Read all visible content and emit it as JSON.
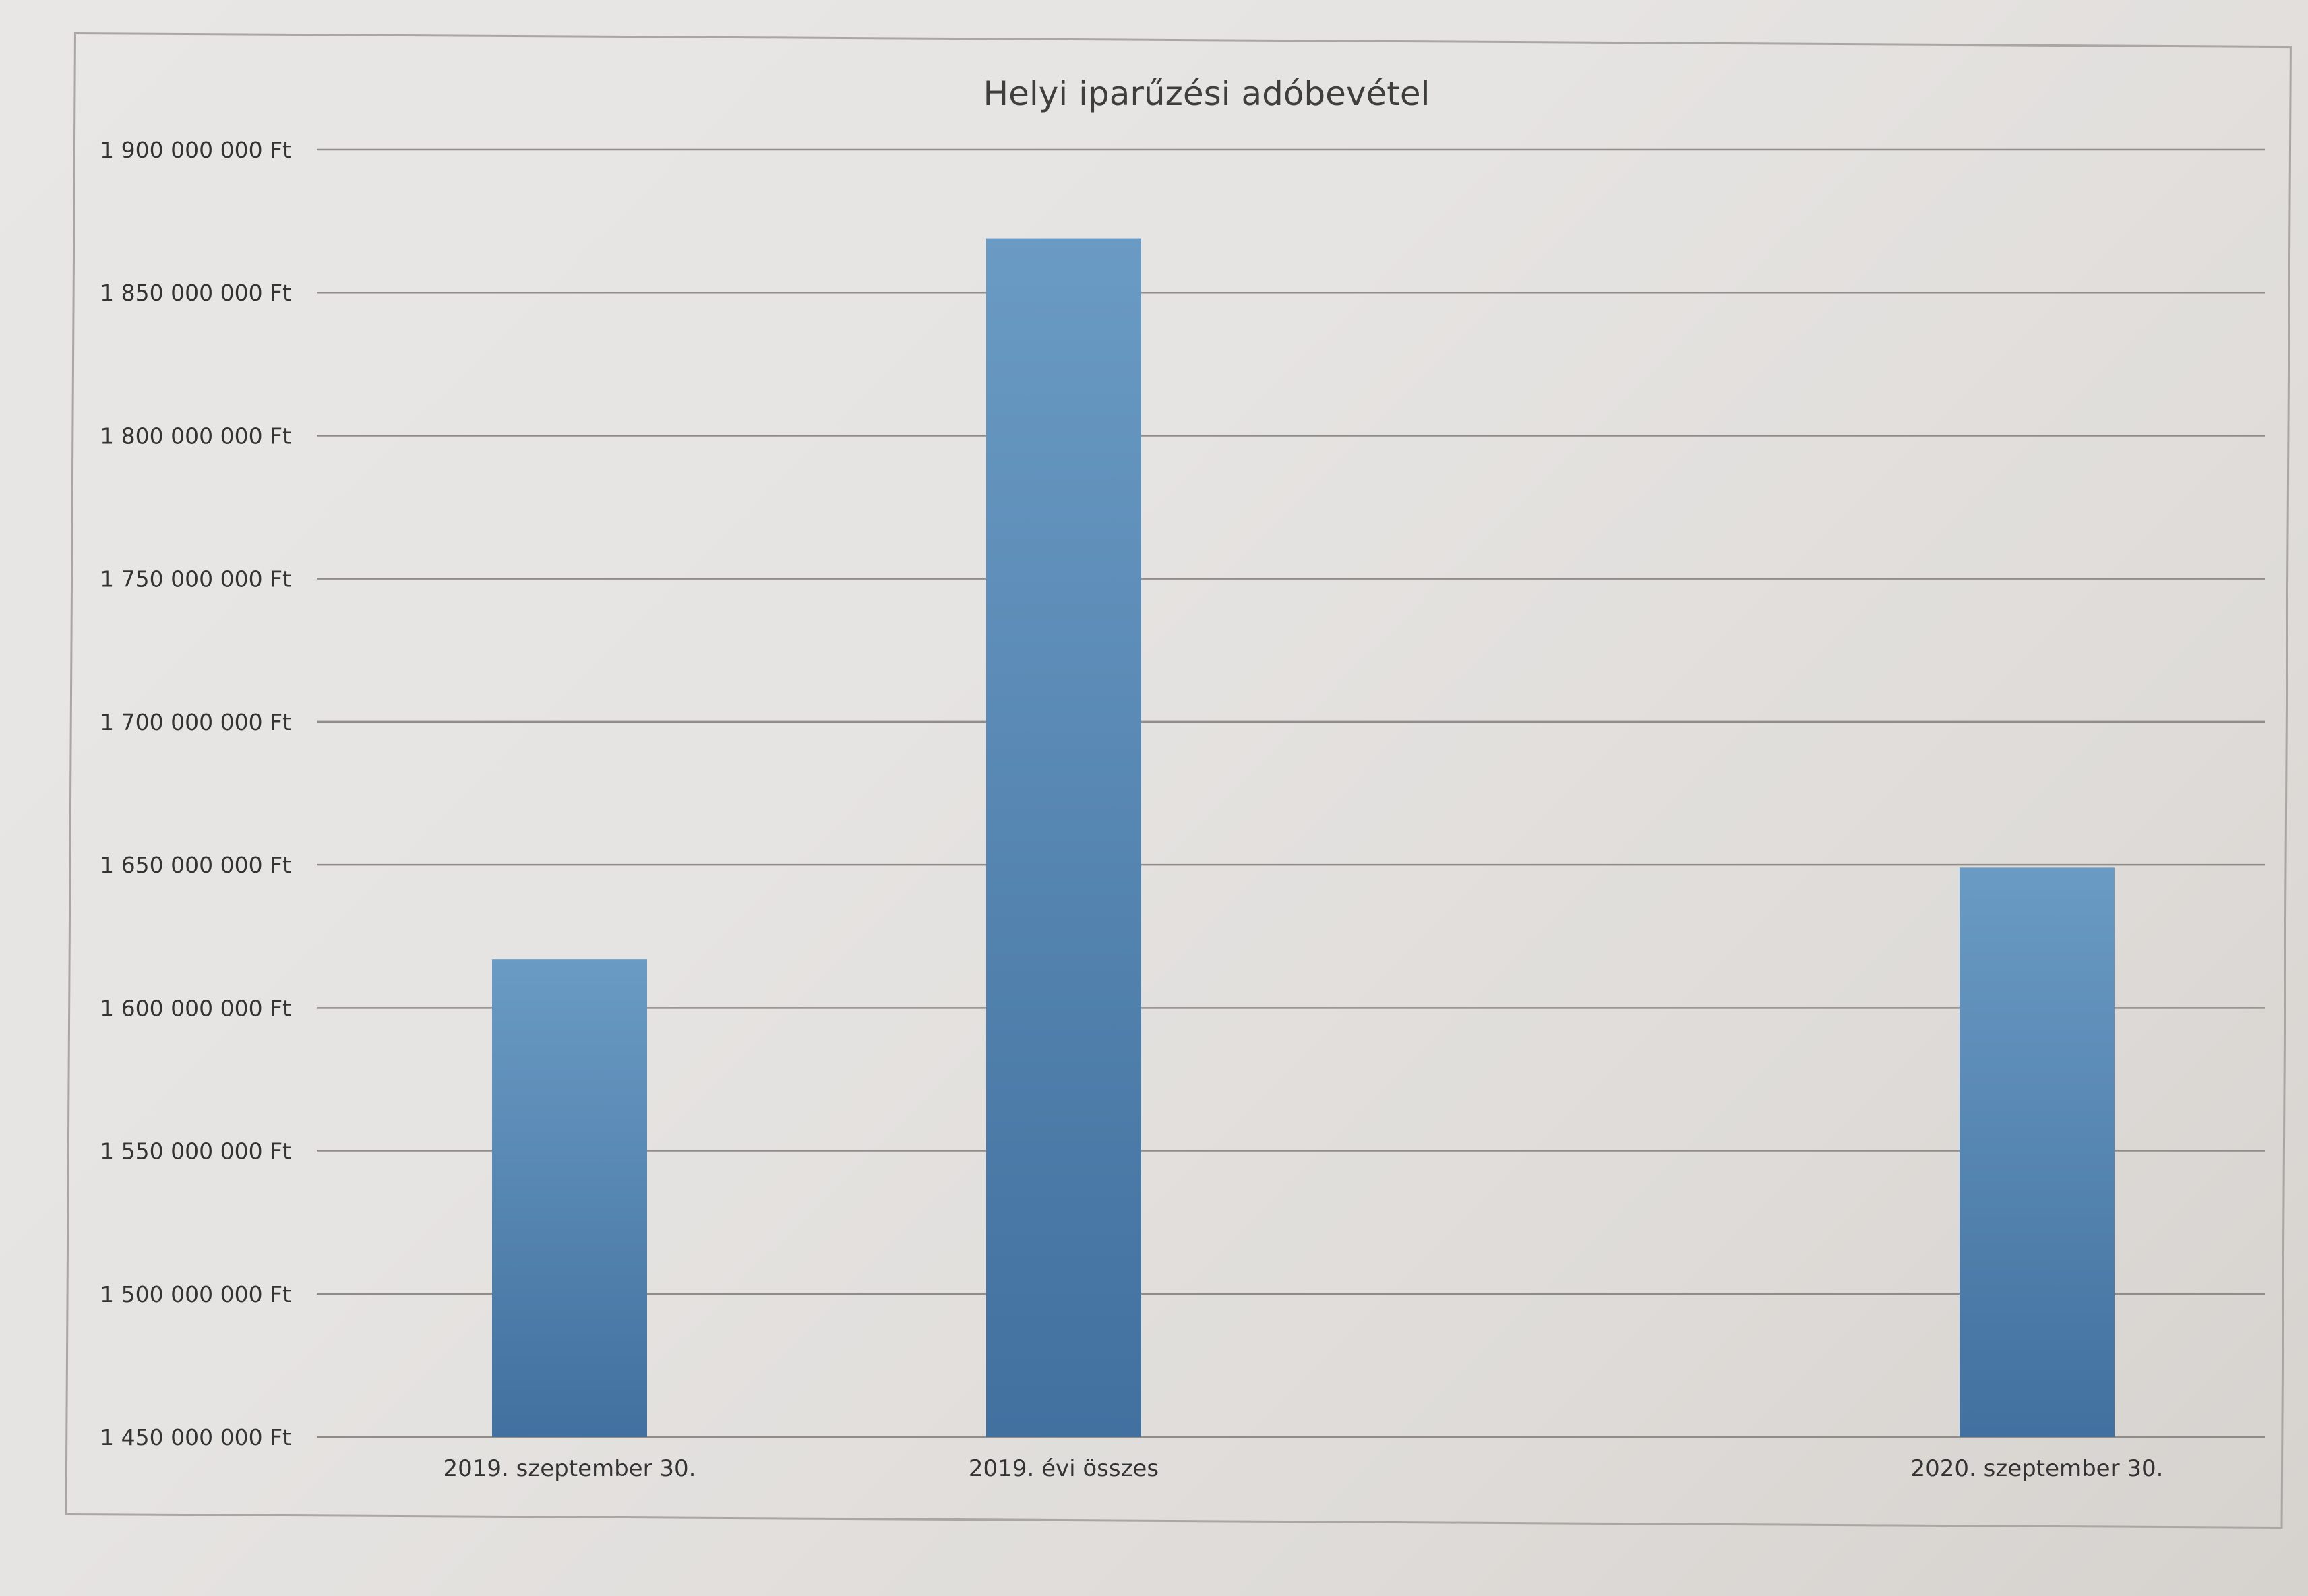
{
  "chart_data": {
    "type": "bar",
    "title": "Helyi iparűzési adóbevétel",
    "xlabel": "",
    "ylabel": "",
    "categories": [
      "2019. szeptember 30.",
      "2019. évi összes",
      "2020. szeptember 30."
    ],
    "values": [
      1617000000,
      1869000000,
      1649000000
    ],
    "ylim": [
      1450000000,
      1900000000
    ],
    "yticks": [
      1450000000,
      1500000000,
      1550000000,
      1600000000,
      1650000000,
      1700000000,
      1750000000,
      1800000000,
      1850000000,
      1900000000
    ],
    "ytick_labels": [
      "1 450 000 000 Ft",
      "1 500 000 000 Ft",
      "1 550 000 000 Ft",
      "1 600 000 000 Ft",
      "1 650 000 000 Ft",
      "1 700 000 000 Ft",
      "1 750 000 000 Ft",
      "1 800 000 000 Ft",
      "1 850 000 000 Ft",
      "1 900 000 000 Ft"
    ],
    "grid": true,
    "legend": "none",
    "bar_color": "#4d7eab"
  }
}
